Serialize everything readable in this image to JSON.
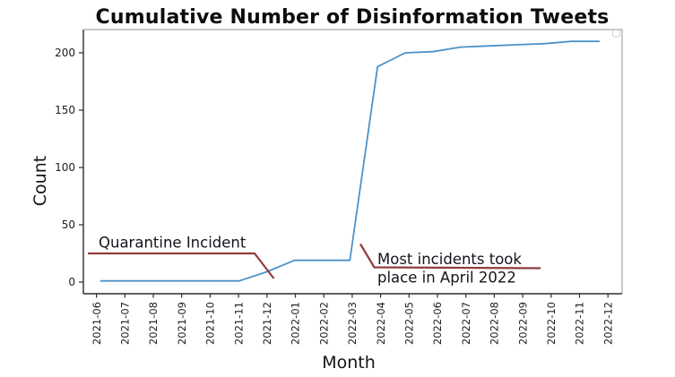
{
  "chart_data": {
    "type": "line",
    "title": "Cumulative Number of Disinformation Tweets",
    "xlabel": "Month",
    "ylabel": "Count",
    "categories": [
      "2021-06",
      "2021-07",
      "2021-08",
      "2021-09",
      "2021-10",
      "2021-11",
      "2021-12",
      "2022-01",
      "2022-02",
      "2022-03",
      "2022-04",
      "2022-05",
      "2022-06",
      "2022-07",
      "2022-08",
      "2022-09",
      "2022-10",
      "2022-11",
      "2022-12"
    ],
    "values": [
      1,
      1,
      1,
      1,
      1,
      1,
      9,
      19,
      19,
      19,
      188,
      200,
      201,
      205,
      206,
      207,
      208,
      210,
      210
    ],
    "yticks": [
      0,
      50,
      100,
      150,
      200
    ],
    "ylim": [
      -10,
      220
    ],
    "grid": false,
    "legend": {
      "visible": true,
      "entries": []
    },
    "colors": {
      "line": "#4c92c8",
      "annotation_line": "#903c3c",
      "annotation_text": "#14141c",
      "spine_dark": "#2b2b2b",
      "spine_light": "#a8a8a8"
    },
    "annotations": [
      {
        "text": "Quarantine Incident",
        "points_to": "2021-12"
      },
      {
        "text": "Most incidents took\nplace in April 2022",
        "points_to": "2022-04"
      }
    ]
  }
}
